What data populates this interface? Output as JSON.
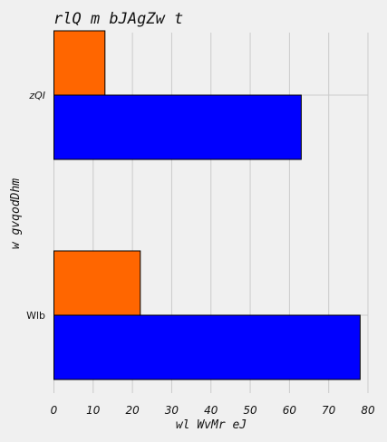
{
  "chart_data": {
    "type": "bar",
    "orientation": "horizontal",
    "title": "rlQ m bJAgZw t",
    "xlabel": "wl WvMr eJ",
    "ylabel": "w gvqodDhm",
    "categories": [
      "zQI",
      "Wlb"
    ],
    "series": [
      {
        "color": "#0000ff",
        "values": [
          63,
          78
        ]
      },
      {
        "color": "#ff6600",
        "values": [
          13,
          22
        ]
      }
    ],
    "xlim": [
      0,
      80
    ],
    "xticks": [
      0,
      10,
      20,
      30,
      40,
      50,
      60,
      70,
      80
    ],
    "grid": true,
    "legend": "none"
  }
}
